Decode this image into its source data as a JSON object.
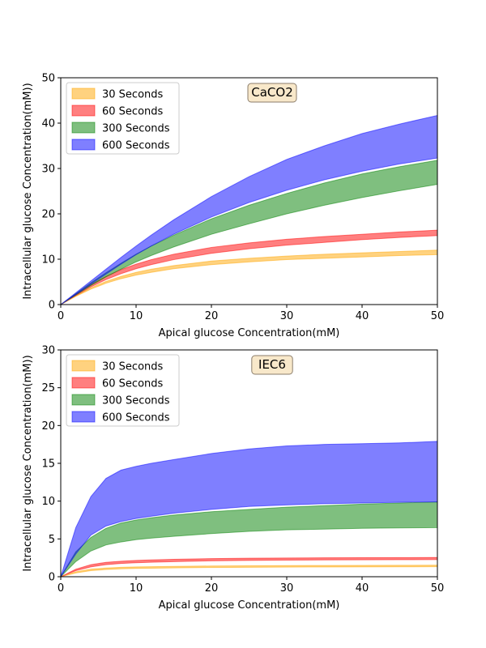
{
  "colors": {
    "30 Seconds": "#ffa500",
    "60 Seconds": "#ff0000",
    "300 Seconds": "#008000",
    "600 Seconds": "#0000ff",
    "title_box_fill": "#f5deb3",
    "title_box_edge": "#8b7d6b"
  },
  "chart_data": [
    {
      "type": "area",
      "title": "CaCO2",
      "xlabel": "Apical glucose Concentration(mM)",
      "ylabel": "Intracellular glucose Concentration(mM))",
      "xlim": [
        0,
        50
      ],
      "ylim": [
        0,
        50
      ],
      "xticks": [
        0,
        10,
        20,
        30,
        40,
        50
      ],
      "yticks": [
        0,
        10,
        20,
        30,
        40,
        50
      ],
      "legend_position": "upper-left",
      "x": [
        0,
        2,
        4,
        6,
        8,
        10,
        12,
        15,
        20,
        25,
        30,
        35,
        40,
        45,
        50
      ],
      "series": [
        {
          "name": "30 Seconds",
          "lower": [
            0,
            1.8,
            3.4,
            4.7,
            5.7,
            6.5,
            7.1,
            7.9,
            8.8,
            9.4,
            9.9,
            10.2,
            10.5,
            10.8,
            11.0
          ],
          "upper": [
            0,
            2.0,
            3.7,
            5.1,
            6.2,
            7.1,
            7.8,
            8.6,
            9.6,
            10.2,
            10.7,
            11.1,
            11.4,
            11.7,
            12.0
          ]
        },
        {
          "name": "60 Seconds",
          "lower": [
            0,
            2.0,
            3.9,
            5.5,
            6.8,
            7.9,
            8.8,
            9.9,
            11.3,
            12.3,
            13.1,
            13.7,
            14.3,
            14.8,
            15.2
          ],
          "upper": [
            0,
            2.3,
            4.4,
            6.2,
            7.7,
            8.9,
            9.9,
            11.1,
            12.6,
            13.6,
            14.4,
            15.0,
            15.5,
            16.0,
            16.4
          ]
        },
        {
          "name": "300 Seconds",
          "lower": [
            0,
            2.1,
            4.2,
            6.1,
            7.8,
            9.4,
            10.8,
            12.7,
            15.5,
            17.8,
            20.0,
            21.9,
            23.6,
            25.1,
            26.5
          ],
          "upper": [
            0,
            2.4,
            4.8,
            7.0,
            9.1,
            11.1,
            12.9,
            15.3,
            18.9,
            21.9,
            24.5,
            26.8,
            28.8,
            30.4,
            31.8
          ]
        },
        {
          "name": "600 Seconds",
          "lower": [
            0,
            2.2,
            4.5,
            6.7,
            8.9,
            11.0,
            12.9,
            15.5,
            19.3,
            22.5,
            25.2,
            27.5,
            29.4,
            31.0,
            32.3
          ],
          "upper": [
            0,
            2.6,
            5.2,
            7.8,
            10.4,
            12.9,
            15.3,
            18.7,
            23.8,
            28.2,
            32.0,
            35.0,
            37.7,
            39.8,
            41.7
          ]
        }
      ]
    },
    {
      "type": "area",
      "title": "IEC6",
      "xlabel": "Apical glucose Concentration(mM)",
      "ylabel": "Intracellular glucose Concentration(mM))",
      "xlim": [
        0,
        50
      ],
      "ylim": [
        0,
        30
      ],
      "xticks": [
        0,
        10,
        20,
        30,
        40,
        50
      ],
      "yticks": [
        0,
        5,
        10,
        15,
        20,
        25,
        30
      ],
      "legend_position": "upper-left",
      "x": [
        0,
        2,
        4,
        6,
        8,
        10,
        12,
        15,
        20,
        25,
        30,
        35,
        40,
        45,
        50
      ],
      "series": [
        {
          "name": "30 Seconds",
          "lower": [
            0,
            0.5,
            0.8,
            0.95,
            1.05,
            1.1,
            1.13,
            1.17,
            1.22,
            1.25,
            1.27,
            1.29,
            1.3,
            1.31,
            1.32
          ],
          "upper": [
            0,
            0.65,
            1.0,
            1.15,
            1.25,
            1.3,
            1.33,
            1.37,
            1.42,
            1.45,
            1.47,
            1.49,
            1.5,
            1.51,
            1.52
          ]
        },
        {
          "name": "60 Seconds",
          "lower": [
            0,
            0.8,
            1.3,
            1.6,
            1.75,
            1.85,
            1.92,
            2.0,
            2.1,
            2.15,
            2.2,
            2.22,
            2.24,
            2.25,
            2.26
          ],
          "upper": [
            0,
            1.0,
            1.6,
            1.9,
            2.05,
            2.15,
            2.22,
            2.3,
            2.4,
            2.45,
            2.48,
            2.5,
            2.52,
            2.53,
            2.54
          ]
        },
        {
          "name": "300 Seconds",
          "lower": [
            0,
            2.0,
            3.4,
            4.2,
            4.6,
            4.9,
            5.1,
            5.35,
            5.7,
            6.0,
            6.2,
            6.3,
            6.4,
            6.45,
            6.5
          ],
          "upper": [
            0,
            3.3,
            5.2,
            6.4,
            7.1,
            7.5,
            7.8,
            8.15,
            8.6,
            8.9,
            9.2,
            9.4,
            9.6,
            9.75,
            9.9
          ]
        },
        {
          "name": "600 Seconds",
          "lower": [
            0,
            3.0,
            5.5,
            6.7,
            7.3,
            7.7,
            8.0,
            8.4,
            8.9,
            9.3,
            9.5,
            9.65,
            9.75,
            9.85,
            9.9
          ],
          "upper": [
            0,
            6.5,
            10.6,
            13.0,
            14.1,
            14.6,
            15.0,
            15.5,
            16.3,
            16.9,
            17.3,
            17.5,
            17.6,
            17.7,
            17.9
          ]
        }
      ]
    }
  ]
}
